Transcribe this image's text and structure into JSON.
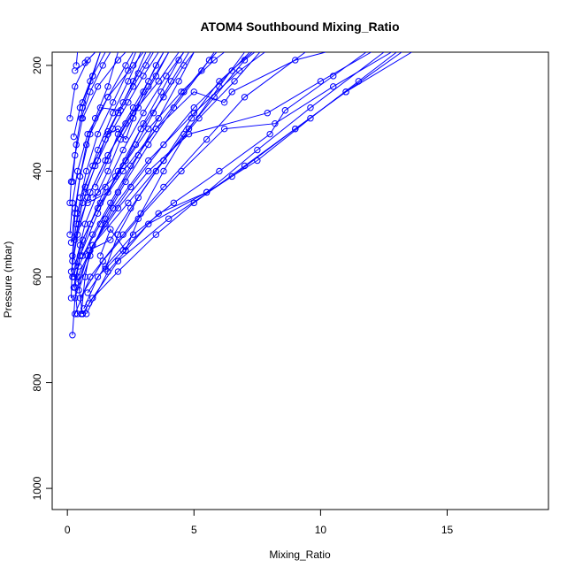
{
  "chart_data": {
    "type": "line",
    "title": "ATOM4 Southbound Mixing_Ratio",
    "xlabel": "Mixing_Ratio",
    "ylabel": "Pressure (mbar)",
    "xlim": [
      -0.6,
      19.0
    ],
    "ylim": [
      1040,
      175
    ],
    "y_reversed": true,
    "xticks": [
      0,
      5,
      10,
      15
    ],
    "yticks": [
      200,
      400,
      600,
      800,
      1000
    ],
    "grid": false,
    "legend": "none",
    "series_color": "#0000ff",
    "profiles": [
      [
        [
          0.4,
          670
        ],
        [
          0.3,
          620
        ],
        [
          0.5,
          560
        ],
        [
          1.2,
          480
        ],
        [
          2.0,
          400
        ],
        [
          2.9,
          320
        ],
        [
          3.8,
          260
        ],
        [
          4.6,
          200
        ],
        [
          5.0,
          175
        ]
      ],
      [
        [
          0.6,
          670
        ],
        [
          0.4,
          600
        ],
        [
          1.0,
          540
        ],
        [
          2.4,
          460
        ],
        [
          3.8,
          380
        ],
        [
          5.2,
          300
        ],
        [
          6.6,
          230
        ],
        [
          7.6,
          175
        ]
      ],
      [
        [
          0.75,
          670
        ],
        [
          1.6,
          590
        ],
        [
          3.2,
          500
        ],
        [
          5.5,
          440
        ],
        [
          7.5,
          360
        ],
        [
          9.6,
          280
        ],
        [
          12.5,
          175
        ]
      ],
      [
        [
          0.85,
          650
        ],
        [
          2.0,
          570
        ],
        [
          4.0,
          490
        ],
        [
          6.5,
          410
        ],
        [
          9.0,
          320
        ],
        [
          11.0,
          250
        ],
        [
          13.6,
          175
        ]
      ],
      [
        [
          0.2,
          710
        ],
        [
          0.3,
          640
        ],
        [
          0.8,
          560
        ],
        [
          1.8,
          470
        ],
        [
          3.2,
          380
        ],
        [
          5.0,
          290
        ],
        [
          6.8,
          210
        ],
        [
          7.8,
          175
        ]
      ],
      [
        [
          0.3,
          670
        ],
        [
          0.9,
          600
        ],
        [
          2.2,
          520
        ],
        [
          3.8,
          430
        ],
        [
          5.5,
          340
        ],
        [
          7.0,
          260
        ],
        [
          9.4,
          175
        ]
      ],
      [
        [
          0.5,
          640
        ],
        [
          1.4,
          570
        ],
        [
          2.8,
          490
        ],
        [
          4.5,
          400
        ],
        [
          6.2,
          320
        ],
        [
          8.2,
          310
        ],
        [
          10.5,
          240
        ],
        [
          12.8,
          175
        ]
      ],
      [
        [
          0.4,
          610
        ],
        [
          1.0,
          540
        ],
        [
          2.0,
          470
        ],
        [
          3.2,
          400
        ],
        [
          4.8,
          330
        ],
        [
          7.9,
          290
        ],
        [
          10.0,
          230
        ],
        [
          12.0,
          175
        ]
      ],
      [
        [
          0.2,
          600
        ],
        [
          0.5,
          540
        ],
        [
          1.2,
          470
        ],
        [
          2.2,
          400
        ],
        [
          3.5,
          320
        ],
        [
          5.0,
          250
        ],
        [
          6.2,
          270
        ],
        [
          6.5,
          250
        ],
        [
          9.0,
          190
        ],
        [
          10.2,
          175
        ]
      ],
      [
        [
          0.15,
          590
        ],
        [
          0.4,
          520
        ],
        [
          0.8,
          450
        ],
        [
          1.6,
          370
        ],
        [
          2.6,
          290
        ],
        [
          3.6,
          230
        ],
        [
          4.4,
          175
        ]
      ],
      [
        [
          0.1,
          520
        ],
        [
          0.2,
          460
        ],
        [
          0.4,
          400
        ],
        [
          0.8,
          330
        ],
        [
          1.6,
          260
        ],
        [
          2.6,
          200
        ],
        [
          3.0,
          175
        ]
      ],
      [
        [
          0.1,
          460
        ],
        [
          0.15,
          420
        ],
        [
          0.3,
          370
        ],
        [
          0.6,
          300
        ],
        [
          1.2,
          240
        ],
        [
          2.0,
          190
        ],
        [
          2.3,
          175
        ]
      ],
      [
        [
          0.15,
          640
        ],
        [
          0.2,
          560
        ],
        [
          0.3,
          480
        ],
        [
          0.5,
          410
        ],
        [
          0.9,
          330
        ],
        [
          1.6,
          260
        ],
        [
          2.3,
          200
        ],
        [
          2.6,
          175
        ]
      ],
      [
        [
          0.3,
          530
        ],
        [
          0.6,
          460
        ],
        [
          1.1,
          390
        ],
        [
          1.8,
          320
        ],
        [
          2.4,
          270
        ],
        [
          3.0,
          220
        ],
        [
          3.6,
          175
        ]
      ],
      [
        [
          0.35,
          200
        ],
        [
          0.4,
          175
        ]
      ],
      [
        [
          0.1,
          300
        ],
        [
          0.3,
          240
        ],
        [
          0.8,
          190
        ],
        [
          1.1,
          175
        ]
      ],
      [
        [
          0.2,
          420
        ],
        [
          0.35,
          350
        ],
        [
          0.6,
          280
        ],
        [
          1.0,
          220
        ],
        [
          1.5,
          175
        ]
      ],
      [
        [
          0.55,
          670
        ],
        [
          0.7,
          600
        ],
        [
          0.9,
          550
        ],
        [
          1.5,
          500
        ],
        [
          2.5,
          430
        ],
        [
          3.8,
          350
        ],
        [
          5.0,
          280
        ],
        [
          6.5,
          210
        ],
        [
          7.2,
          175
        ]
      ],
      [
        [
          0.65,
          660
        ],
        [
          1.2,
          600
        ],
        [
          2.2,
          550
        ],
        [
          3.6,
          480
        ],
        [
          5.5,
          440
        ],
        [
          7.5,
          380
        ],
        [
          9.6,
          300
        ],
        [
          11.5,
          230
        ],
        [
          13.0,
          175
        ]
      ],
      [
        [
          0.8,
          630
        ],
        [
          1.5,
          580
        ],
        [
          2.6,
          520
        ],
        [
          4.2,
          460
        ],
        [
          6.0,
          400
        ],
        [
          8.0,
          330
        ],
        [
          8.6,
          285
        ],
        [
          10.5,
          220
        ],
        [
          11.8,
          175
        ]
      ],
      [
        [
          0.25,
          600
        ],
        [
          0.6,
          530
        ],
        [
          1.3,
          460
        ],
        [
          2.2,
          390
        ],
        [
          3.2,
          320
        ],
        [
          4.5,
          250
        ],
        [
          5.8,
          190
        ],
        [
          6.2,
          175
        ]
      ],
      [
        [
          0.3,
          580
        ],
        [
          0.7,
          500
        ],
        [
          1.2,
          440
        ],
        [
          1.6,
          400
        ],
        [
          2.1,
          340
        ],
        [
          2.8,
          280
        ],
        [
          3.5,
          220
        ],
        [
          4.0,
          175
        ]
      ],
      [
        [
          0.2,
          560
        ],
        [
          0.4,
          480
        ],
        [
          0.75,
          400
        ],
        [
          1.2,
          330
        ],
        [
          1.8,
          270
        ],
        [
          2.4,
          210
        ],
        [
          2.7,
          175
        ]
      ],
      [
        [
          0.15,
          535
        ],
        [
          0.3,
          470
        ],
        [
          0.5,
          410
        ],
        [
          0.75,
          350
        ],
        [
          1.1,
          300
        ],
        [
          1.6,
          240
        ],
        [
          2.0,
          175
        ]
      ],
      [
        [
          0.25,
          620
        ],
        [
          0.5,
          560
        ],
        [
          0.9,
          500
        ],
        [
          1.5,
          430
        ],
        [
          2.2,
          360
        ],
        [
          3.0,
          290
        ],
        [
          3.9,
          220
        ],
        [
          4.6,
          175
        ]
      ],
      [
        [
          0.45,
          580
        ],
        [
          1.0,
          520
        ],
        [
          1.7,
          460
        ],
        [
          2.5,
          390
        ],
        [
          3.5,
          320
        ],
        [
          4.6,
          250
        ],
        [
          5.6,
          190
        ],
        [
          5.9,
          175
        ]
      ],
      [
        [
          0.2,
          570
        ],
        [
          0.45,
          500
        ],
        [
          0.9,
          440
        ],
        [
          1.5,
          380
        ],
        [
          2.3,
          310
        ],
        [
          3.2,
          240
        ],
        [
          4.0,
          175
        ]
      ],
      [
        [
          0.6,
          560
        ],
        [
          1.3,
          500
        ],
        [
          2.0,
          440
        ],
        [
          2.8,
          370
        ],
        [
          3.6,
          300
        ],
        [
          4.4,
          230
        ],
        [
          5.0,
          175
        ]
      ],
      [
        [
          0.35,
          500
        ],
        [
          0.7,
          430
        ],
        [
          1.2,
          360
        ],
        [
          1.8,
          290
        ],
        [
          2.4,
          230
        ],
        [
          2.9,
          175
        ]
      ],
      [
        [
          0.55,
          300
        ],
        [
          0.9,
          250
        ],
        [
          1.4,
          200
        ],
        [
          1.7,
          175
        ]
      ],
      [
        [
          0.6,
          270
        ],
        [
          1.0,
          220
        ],
        [
          1.3,
          175
        ]
      ],
      [
        [
          0.25,
          335
        ],
        [
          0.5,
          280
        ],
        [
          0.9,
          230
        ],
        [
          1.3,
          175
        ]
      ],
      [
        [
          0.7,
          440
        ],
        [
          1.2,
          380
        ],
        [
          1.6,
          325
        ],
        [
          2.2,
          270
        ],
        [
          2.8,
          215
        ],
        [
          3.3,
          175
        ]
      ],
      [
        [
          1.6,
          330
        ],
        [
          2.0,
          320
        ],
        [
          2.3,
          340
        ],
        [
          2.6,
          300
        ],
        [
          3.0,
          250
        ],
        [
          3.5,
          200
        ],
        [
          3.8,
          175
        ]
      ],
      [
        [
          1.3,
          560
        ],
        [
          1.7,
          510
        ],
        [
          2.3,
          550
        ],
        [
          2.9,
          480
        ],
        [
          3.8,
          400
        ],
        [
          4.8,
          320
        ],
        [
          6.0,
          240
        ],
        [
          7.0,
          175
        ]
      ],
      [
        [
          1.5,
          585
        ],
        [
          2.0,
          520
        ],
        [
          2.8,
          450
        ],
        [
          3.8,
          380
        ],
        [
          4.9,
          300
        ],
        [
          6.0,
          230
        ],
        [
          7.3,
          175
        ]
      ],
      [
        [
          0.85,
          550
        ],
        [
          1.7,
          530
        ],
        [
          2.5,
          470
        ],
        [
          3.5,
          400
        ],
        [
          4.6,
          330
        ],
        [
          5.8,
          260
        ],
        [
          7.0,
          190
        ],
        [
          7.4,
          175
        ]
      ],
      [
        [
          0.8,
          460
        ],
        [
          1.6,
          440
        ],
        [
          2.3,
          380
        ],
        [
          3.0,
          310
        ],
        [
          3.7,
          250
        ],
        [
          4.4,
          190
        ],
        [
          4.6,
          175
        ]
      ],
      [
        [
          0.45,
          625
        ],
        [
          0.9,
          560
        ],
        [
          1.5,
          490
        ],
        [
          2.3,
          420
        ],
        [
          3.2,
          350
        ],
        [
          4.2,
          280
        ],
        [
          5.3,
          210
        ],
        [
          5.8,
          175
        ]
      ],
      [
        [
          1.1,
          430
        ],
        [
          1.6,
          380
        ],
        [
          2.0,
          330
        ],
        [
          2.6,
          280
        ],
        [
          3.2,
          230
        ],
        [
          3.8,
          175
        ]
      ],
      [
        [
          0.6,
          670
        ],
        [
          1.0,
          640
        ],
        [
          2.0,
          590
        ],
        [
          3.5,
          520
        ],
        [
          5.0,
          460
        ],
        [
          7.0,
          390
        ],
        [
          9.0,
          320
        ],
        [
          11.0,
          250
        ],
        [
          13.2,
          175
        ]
      ],
      [
        [
          1.3,
          280
        ],
        [
          2.1,
          285
        ],
        [
          2.6,
          240
        ],
        [
          3.1,
          200
        ],
        [
          3.4,
          175
        ]
      ],
      [
        [
          0.3,
          210
        ],
        [
          0.7,
          195
        ],
        [
          1.1,
          175
        ]
      ],
      [
        [
          1.0,
          450
        ],
        [
          1.9,
          410
        ],
        [
          2.7,
          350
        ],
        [
          3.4,
          290
        ],
        [
          4.1,
          230
        ],
        [
          4.8,
          175
        ]
      ],
      [
        [
          0.5,
          450
        ],
        [
          1.0,
          390
        ],
        [
          1.5,
          340
        ],
        [
          2.0,
          290
        ],
        [
          2.6,
          230
        ],
        [
          3.1,
          175
        ]
      ]
    ]
  }
}
